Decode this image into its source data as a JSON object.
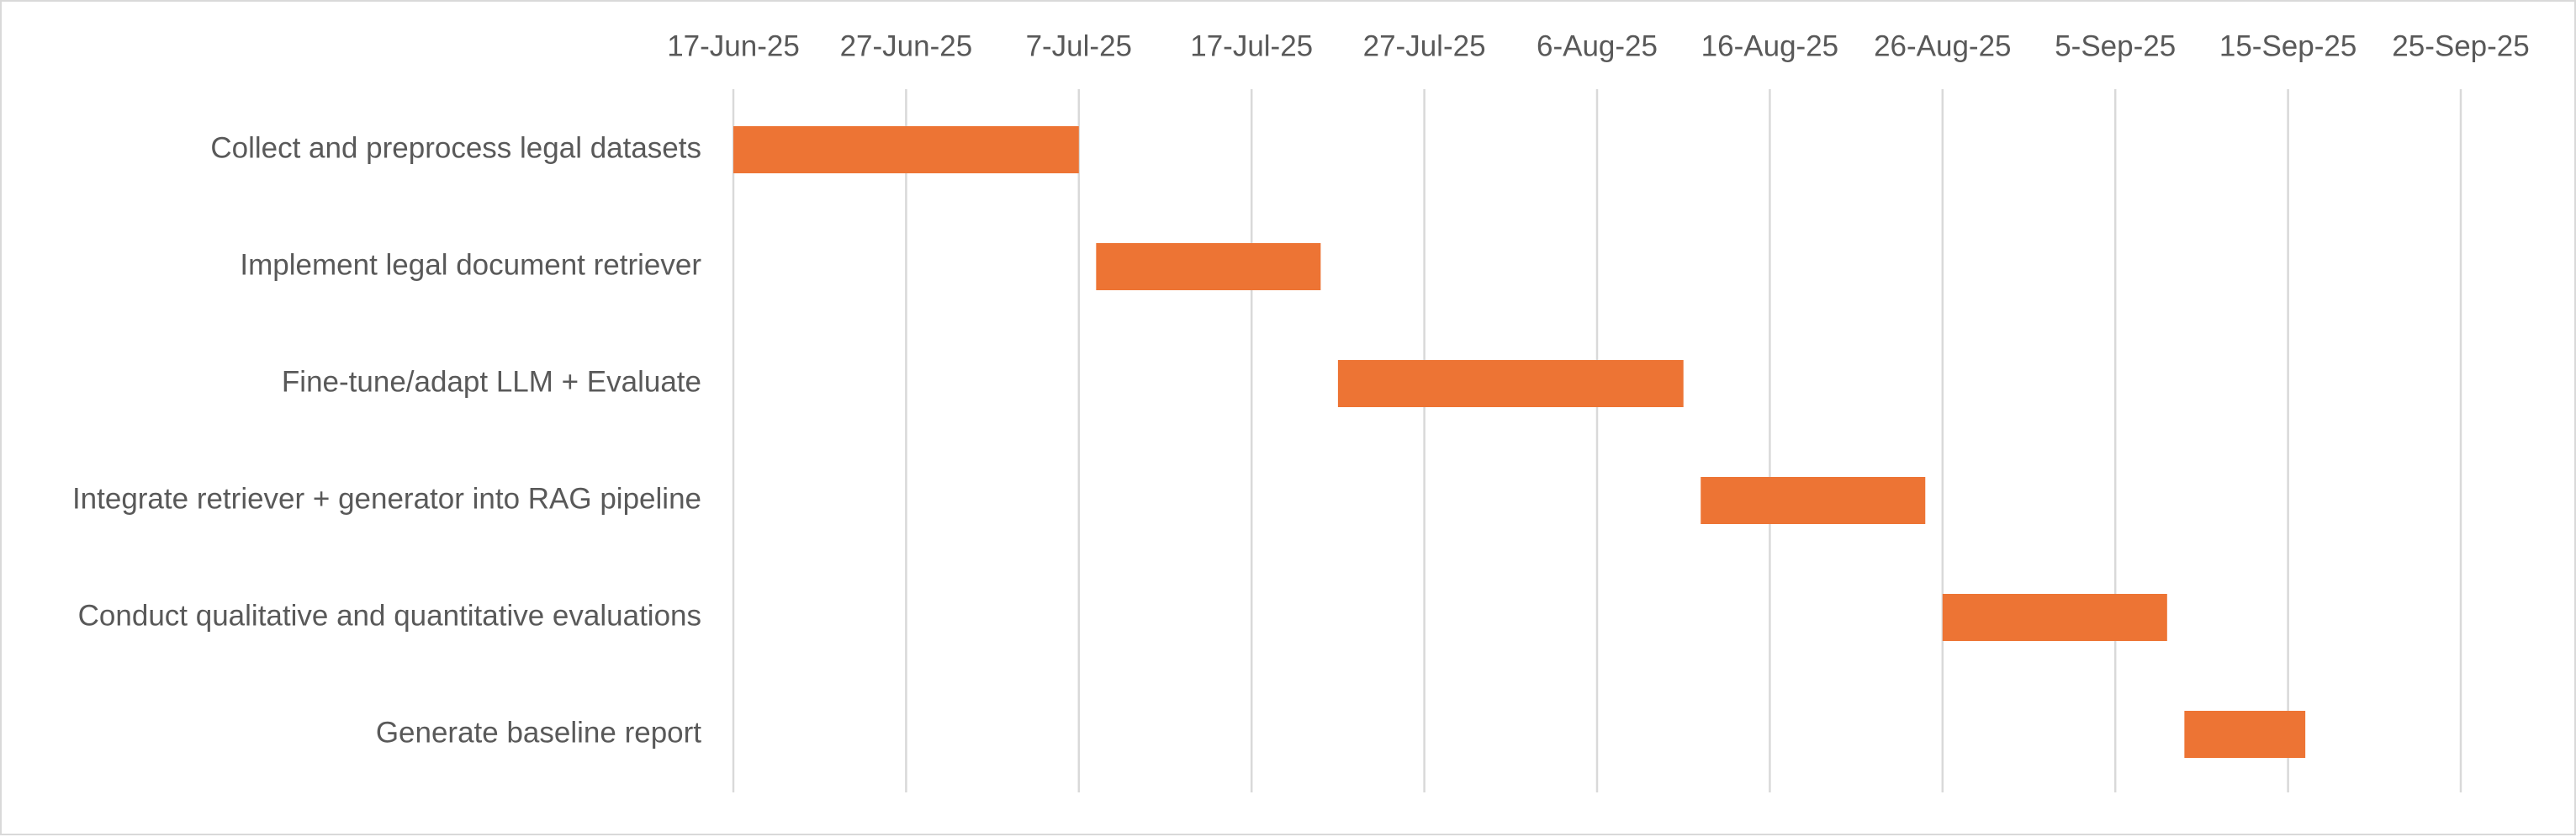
{
  "chart_data": {
    "type": "bar",
    "subtype": "gantt",
    "title": "",
    "xlabel": "",
    "ylabel": "",
    "x_ticks": [
      "17-Jun-25",
      "27-Jun-25",
      "7-Jul-25",
      "17-Jul-25",
      "27-Jul-25",
      "6-Aug-25",
      "16-Aug-25",
      "26-Aug-25",
      "5-Sep-25",
      "15-Sep-25",
      "25-Sep-25"
    ],
    "x_tick_dates": [
      "2025-06-17",
      "2025-06-27",
      "2025-07-07",
      "2025-07-17",
      "2025-07-27",
      "2025-08-06",
      "2025-08-16",
      "2025-08-26",
      "2025-09-05",
      "2025-09-15",
      "2025-09-25"
    ],
    "xlim": [
      "2025-06-17",
      "2025-09-25"
    ],
    "x_axis_position": "top",
    "grid": "vertical",
    "legend": "none",
    "bar_color": "#ED7434",
    "gridline_color": "#D9D9D9",
    "text_color": "#595959",
    "tasks": [
      {
        "name": "Collect and preprocess legal datasets",
        "start": "2025-06-17",
        "end": "2025-07-07"
      },
      {
        "name": "Implement legal document retriever",
        "start": "2025-07-08",
        "end": "2025-07-21"
      },
      {
        "name": "Fine-tune/adapt LLM + Evaluate ",
        "start": "2025-07-22",
        "end": "2025-08-11"
      },
      {
        "name": "Integrate retriever + generator into RAG pipeline",
        "start": "2025-08-12",
        "end": "2025-08-25"
      },
      {
        "name": "Conduct qualitative and quantitative evaluations",
        "start": "2025-08-26",
        "end": "2025-09-08"
      },
      {
        "name": "Generate baseline report",
        "start": "2025-09-09",
        "end": "2025-09-16"
      }
    ]
  }
}
